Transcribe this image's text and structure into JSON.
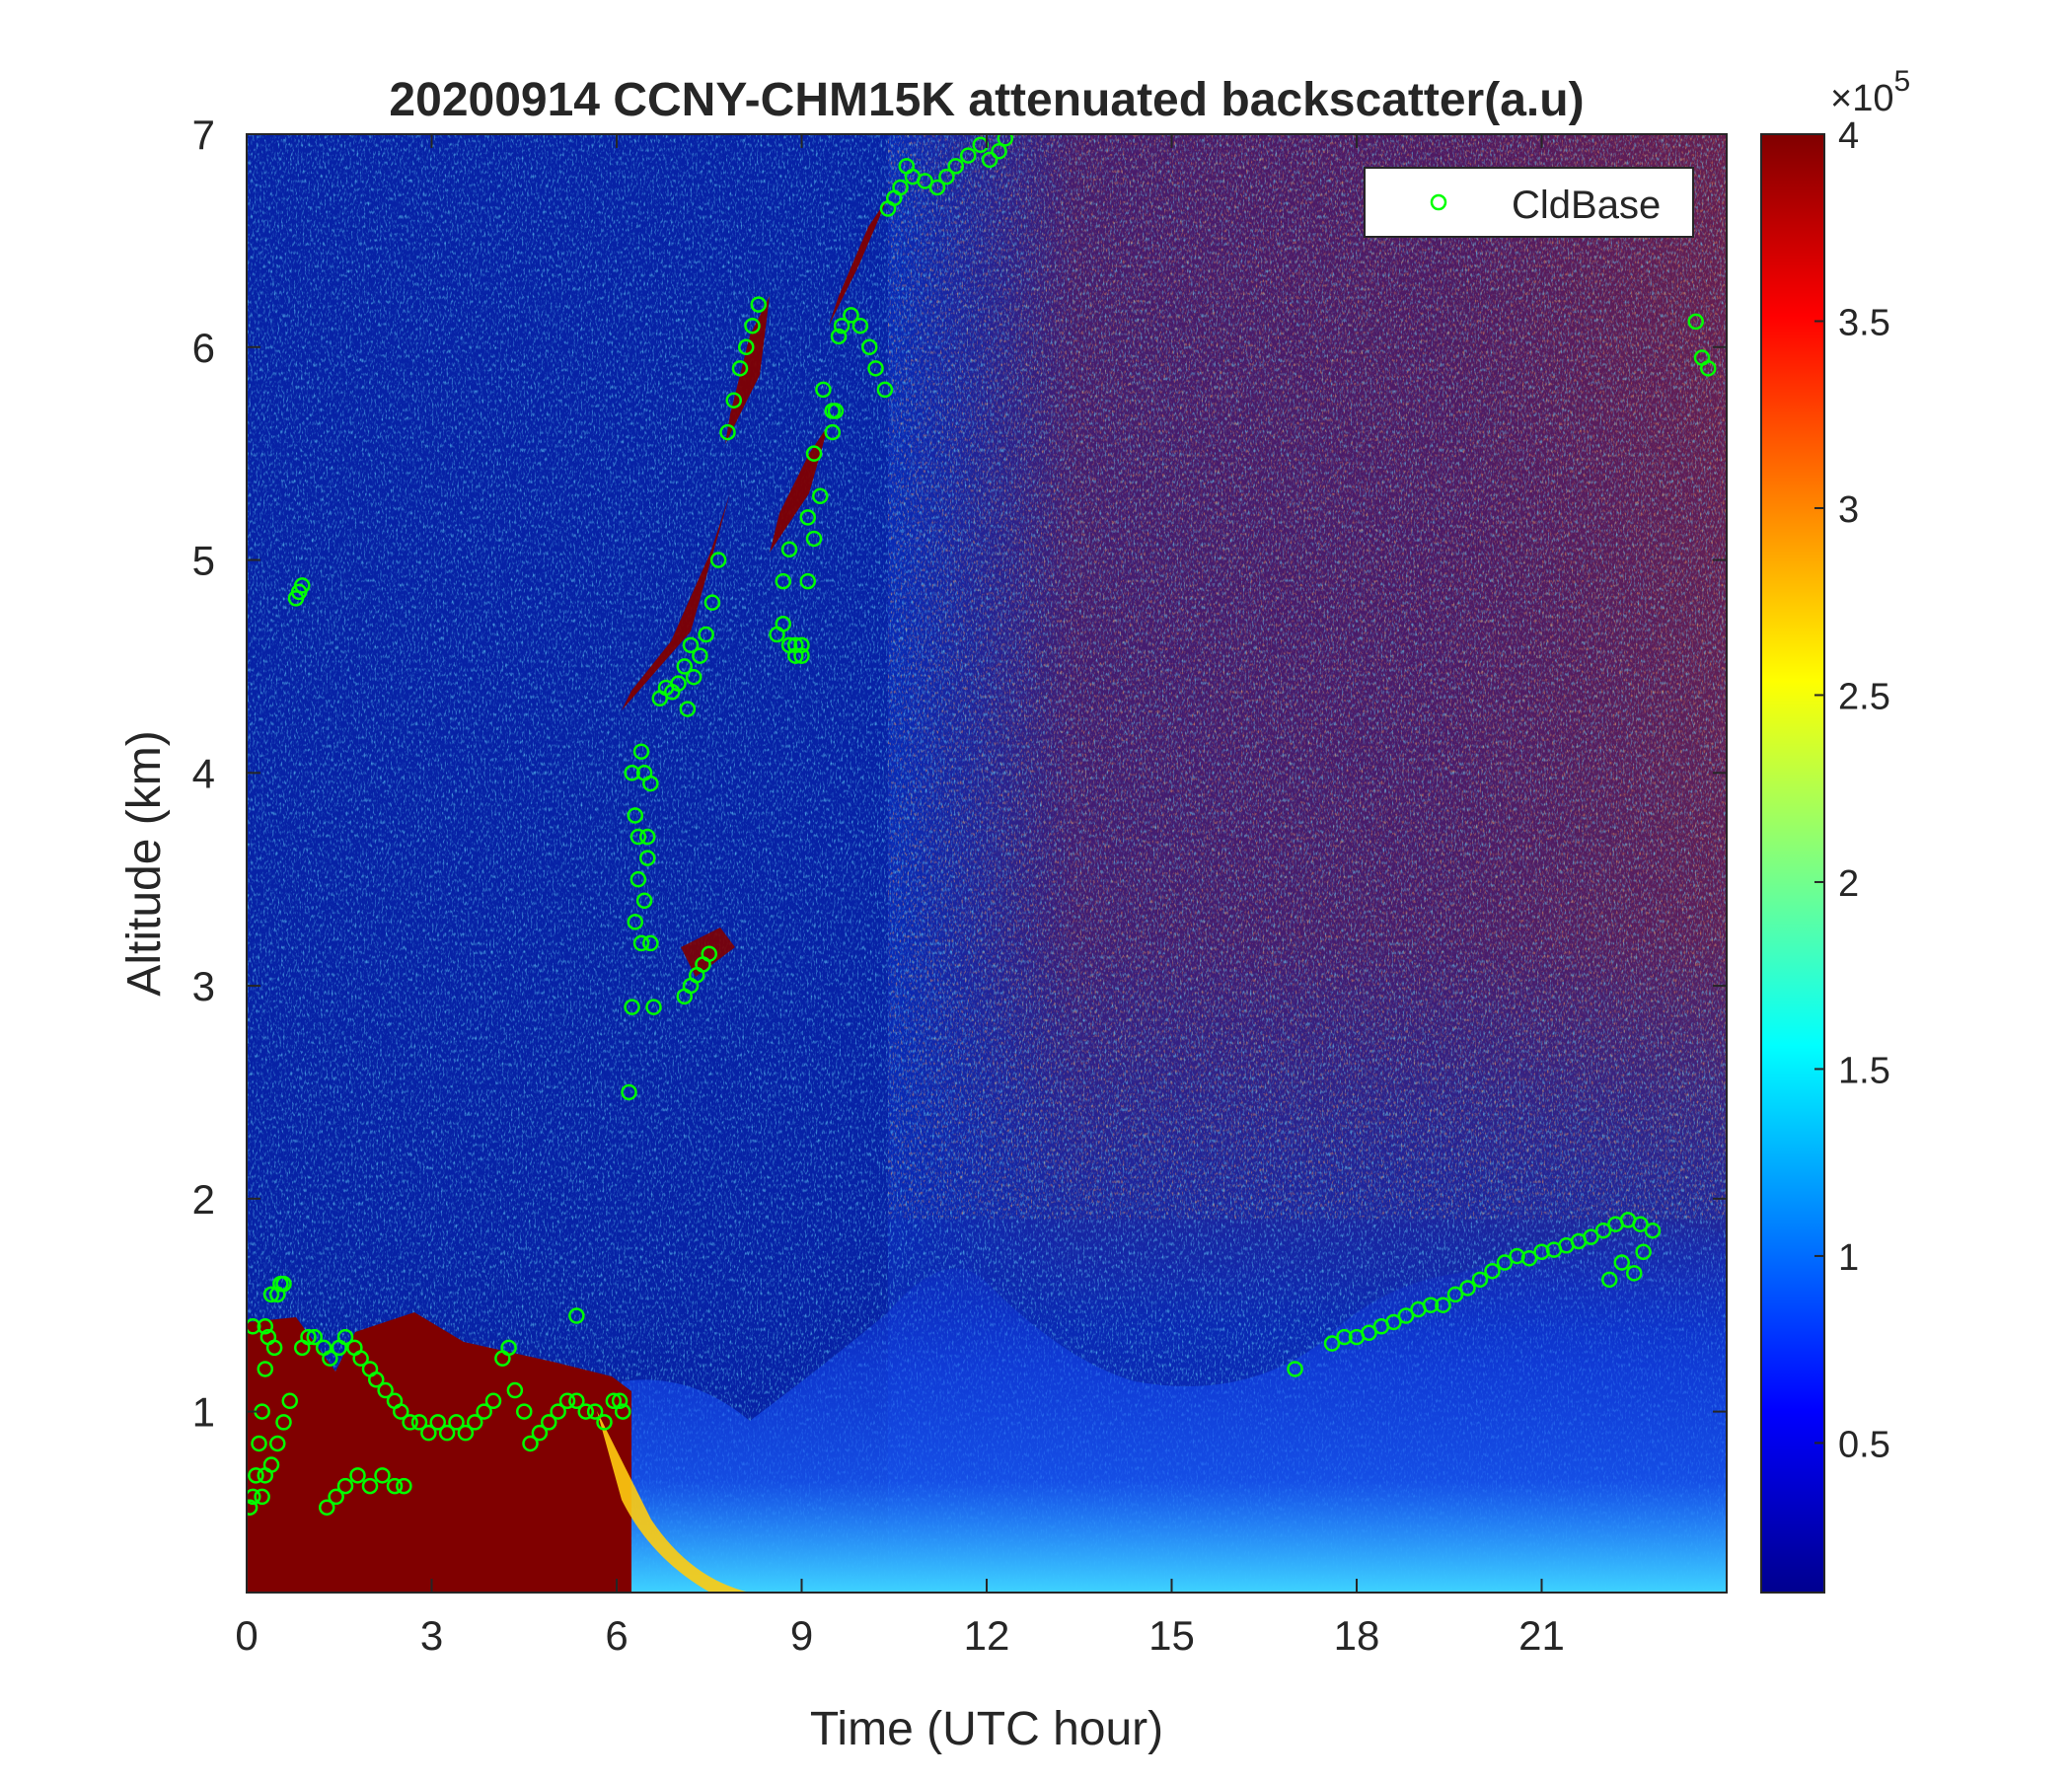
{
  "chart_data": {
    "type": "heatmap",
    "title": "20200914 CCNY-CHM15K attenuated backscatter(a.u)",
    "xlabel": "Time (UTC hour)",
    "ylabel": "Altitude (km)",
    "xlim": [
      0,
      24
    ],
    "ylim": [
      0.15,
      7
    ],
    "x_ticks": [
      0,
      3,
      6,
      9,
      12,
      15,
      18,
      21
    ],
    "x_tick_labels": [
      "0",
      "3",
      "6",
      "9",
      "12",
      "15",
      "18",
      "21"
    ],
    "y_ticks": [
      1,
      2,
      3,
      4,
      5,
      6,
      7
    ],
    "y_tick_labels": [
      "1",
      "2",
      "3",
      "4",
      "5",
      "6",
      "7"
    ],
    "colorbar": {
      "colormap": "jet",
      "clim": [
        0.1,
        4
      ],
      "ticks": [
        0.5,
        1,
        1.5,
        2,
        2.5,
        3,
        3.5,
        4
      ],
      "tick_labels": [
        "0.5",
        "1",
        "1.5",
        "2",
        "2.5",
        "3",
        "3.5",
        "4"
      ],
      "multiplier_base": "×10",
      "multiplier_exponent": "5"
    },
    "legend": {
      "location": "top-right",
      "entries": [
        {
          "label": "CldBase",
          "marker": "circle",
          "color": "#00ff00"
        }
      ]
    },
    "series": [
      {
        "name": "CldBase",
        "type": "scatter",
        "marker": "circle",
        "color": "#00ff00",
        "x": [
          0.05,
          0.1,
          0.15,
          0.2,
          0.25,
          0.3,
          0.35,
          0.4,
          0.5,
          0.55,
          0.6,
          0.25,
          0.3,
          0.4,
          0.5,
          0.6,
          0.7,
          0.9,
          1.0,
          1.1,
          1.25,
          1.35,
          1.5,
          1.6,
          1.75,
          1.85,
          2.0,
          2.1,
          2.25,
          2.4,
          2.5,
          2.65,
          2.8,
          2.95,
          3.1,
          3.25,
          3.4,
          3.55,
          3.7,
          3.85,
          4.0,
          4.15,
          4.25,
          4.35,
          4.5,
          4.6,
          4.75,
          4.9,
          5.05,
          5.2,
          5.35,
          5.5,
          5.65,
          5.8,
          5.95,
          6.05,
          1.3,
          1.45,
          1.6,
          1.8,
          2.0,
          2.2,
          2.4,
          2.55,
          0.1,
          0.3,
          0.45,
          5.35,
          0.8,
          0.85,
          0.9,
          6.1,
          6.2,
          6.25,
          6.3,
          6.35,
          6.4,
          6.45,
          6.5,
          6.55,
          6.6,
          6.7,
          6.8,
          6.9,
          7.0,
          7.1,
          7.2,
          6.25,
          6.3,
          6.35,
          6.4,
          6.45,
          6.5,
          6.55,
          7.15,
          7.25,
          7.35,
          7.45,
          7.55,
          7.65,
          7.1,
          7.2,
          7.3,
          7.4,
          7.5,
          7.8,
          7.9,
          8.0,
          8.1,
          8.2,
          8.3,
          8.7,
          8.8,
          8.9,
          9.0,
          9.1,
          9.2,
          9.3,
          9.5,
          8.6,
          8.7,
          8.8,
          8.9,
          9.0,
          9.1,
          9.2,
          9.35,
          9.5,
          9.65,
          9.8,
          9.95,
          10.1,
          10.2,
          10.35,
          9.6,
          9.55,
          10.4,
          10.5,
          10.6,
          10.7,
          10.8,
          11.0,
          11.2,
          11.35,
          11.5,
          11.7,
          11.9,
          12.05,
          12.2,
          12.3,
          17.0,
          17.6,
          17.8,
          18.0,
          18.2,
          18.4,
          18.6,
          18.8,
          19.0,
          19.2,
          19.4,
          19.6,
          19.8,
          20.0,
          20.2,
          20.4,
          20.6,
          20.8,
          21.0,
          21.2,
          21.4,
          21.6,
          21.8,
          22.0,
          22.2,
          22.4,
          22.6,
          22.8,
          22.3,
          22.5,
          22.65,
          22.1,
          23.5,
          23.6,
          23.7
        ],
        "y": [
          0.55,
          0.6,
          0.7,
          0.85,
          1.0,
          1.2,
          1.35,
          1.55,
          1.55,
          1.6,
          1.6,
          0.6,
          0.7,
          0.75,
          0.85,
          0.95,
          1.05,
          1.3,
          1.35,
          1.35,
          1.3,
          1.25,
          1.3,
          1.35,
          1.3,
          1.25,
          1.2,
          1.15,
          1.1,
          1.05,
          1.0,
          0.95,
          0.95,
          0.9,
          0.95,
          0.9,
          0.95,
          0.9,
          0.95,
          1.0,
          1.05,
          1.25,
          1.3,
          1.1,
          1.0,
          0.85,
          0.9,
          0.95,
          1.0,
          1.05,
          1.05,
          1.0,
          1.0,
          0.95,
          1.05,
          1.05,
          0.55,
          0.6,
          0.65,
          0.7,
          0.65,
          0.7,
          0.65,
          0.65,
          1.4,
          1.4,
          1.3,
          1.45,
          4.82,
          4.85,
          4.88,
          1.0,
          2.5,
          2.9,
          3.3,
          3.7,
          4.1,
          4.0,
          3.6,
          3.2,
          2.9,
          4.35,
          4.4,
          4.38,
          4.42,
          4.5,
          4.6,
          4.0,
          3.8,
          3.5,
          3.2,
          3.4,
          3.7,
          3.95,
          4.3,
          4.45,
          4.55,
          4.65,
          4.8,
          5.0,
          2.95,
          3.0,
          3.05,
          3.1,
          3.15,
          5.6,
          5.75,
          5.9,
          6.0,
          6.1,
          6.2,
          4.9,
          5.05,
          4.6,
          4.55,
          4.9,
          5.1,
          5.3,
          5.6,
          4.65,
          4.7,
          4.6,
          4.55,
          4.6,
          5.2,
          5.5,
          5.8,
          5.7,
          6.1,
          6.15,
          6.1,
          6.0,
          5.9,
          5.8,
          6.05,
          5.7,
          6.65,
          6.7,
          6.75,
          6.85,
          6.8,
          6.78,
          6.75,
          6.8,
          6.85,
          6.9,
          6.95,
          6.88,
          6.92,
          6.98,
          1.2,
          1.32,
          1.35,
          1.35,
          1.37,
          1.4,
          1.42,
          1.45,
          1.48,
          1.5,
          1.5,
          1.55,
          1.58,
          1.62,
          1.66,
          1.7,
          1.73,
          1.72,
          1.75,
          1.76,
          1.78,
          1.8,
          1.82,
          1.85,
          1.88,
          1.9,
          1.88,
          1.85,
          1.7,
          1.65,
          1.75,
          1.62,
          6.12,
          5.95,
          5.9
        ]
      }
    ]
  }
}
